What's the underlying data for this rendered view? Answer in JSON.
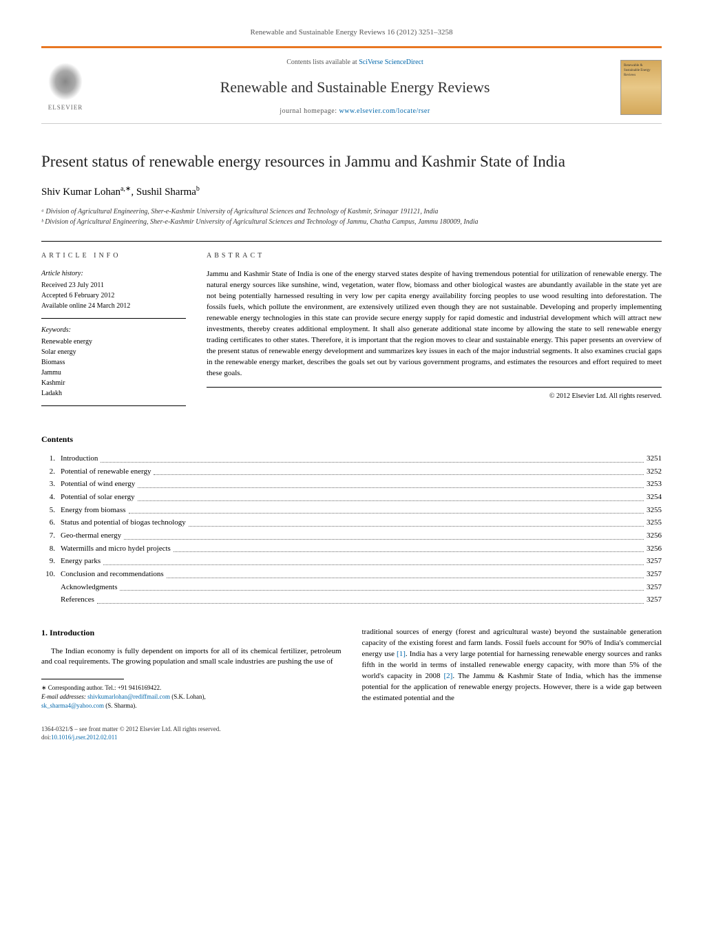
{
  "header": {
    "citation": "Renewable and Sustainable Energy Reviews 16 (2012) 3251–3258",
    "publisher": "ELSEVIER",
    "contents_prefix": "Contents lists available at ",
    "contents_link": "SciVerse ScienceDirect",
    "journal_title": "Renewable and Sustainable Energy Reviews",
    "homepage_prefix": "journal homepage: ",
    "homepage_url": "www.elsevier.com/locate/rser",
    "cover_text": "Renewable & Sustainable Energy Reviews"
  },
  "article": {
    "title": "Present status of renewable energy resources in Jammu and Kashmir State of India",
    "authors_html": "Shiv Kumar Lohan",
    "author1": "Shiv Kumar Lohan",
    "author1_sup": "a,∗",
    "author2": "Sushil Sharma",
    "author2_sup": "b",
    "affiliations": [
      "ᵃ Division of Agricultural Engineering, Sher-e-Kashmir University of Agricultural Sciences and Technology of Kashmir, Srinagar 191121, India",
      "ᵇ Division of Agricultural Engineering, Sher-e-Kashmir University of Agricultural Sciences and Technology of Jammu, Chatha Campus, Jammu 180009, India"
    ]
  },
  "info": {
    "heading": "article info",
    "history_head": "Article history:",
    "history": [
      "Received 23 July 2011",
      "Accepted 6 February 2012",
      "Available online 24 March 2012"
    ],
    "keywords_head": "Keywords:",
    "keywords": [
      "Renewable energy",
      "Solar energy",
      "Biomass",
      "Jammu",
      "Kashmir",
      "Ladakh"
    ]
  },
  "abstract": {
    "heading": "abstract",
    "text": "Jammu and Kashmir State of India is one of the energy starved states despite of having tremendous potential for utilization of renewable energy. The natural energy sources like sunshine, wind, vegetation, water flow, biomass and other biological wastes are abundantly available in the state yet are not being potentially harnessed resulting in very low per capita energy availability forcing peoples to use wood resulting into deforestation. The fossils fuels, which pollute the environment, are extensively utilized even though they are not sustainable. Developing and properly implementing renewable energy technologies in this state can provide secure energy supply for rapid domestic and industrial development which will attract new investments, thereby creates additional employment. It shall also generate additional state income by allowing the state to sell renewable energy trading certificates to other states. Therefore, it is important that the region moves to clear and sustainable energy. This paper presents an overview of the present status of renewable energy development and summarizes key issues in each of the major industrial segments. It also examines crucial gaps in the renewable energy market, describes the goals set out by various government programs, and estimates the resources and effort required to meet these goals.",
    "copyright": "© 2012 Elsevier Ltd. All rights reserved."
  },
  "contents": {
    "heading": "Contents",
    "items": [
      {
        "num": "1.",
        "title": "Introduction",
        "page": "3251"
      },
      {
        "num": "2.",
        "title": "Potential of renewable energy",
        "page": "3252"
      },
      {
        "num": "3.",
        "title": "Potential of wind energy",
        "page": "3253"
      },
      {
        "num": "4.",
        "title": "Potential of solar energy",
        "page": "3254"
      },
      {
        "num": "5.",
        "title": "Energy from biomass",
        "page": "3255"
      },
      {
        "num": "6.",
        "title": "Status and potential of biogas technology",
        "page": "3255"
      },
      {
        "num": "7.",
        "title": "Geo-thermal energy",
        "page": "3256"
      },
      {
        "num": "8.",
        "title": "Watermills and micro hydel projects",
        "page": "3256"
      },
      {
        "num": "9.",
        "title": "Energy parks",
        "page": "3257"
      },
      {
        "num": "10.",
        "title": "Conclusion and recommendations",
        "page": "3257"
      },
      {
        "num": "",
        "title": "Acknowledgments",
        "page": "3257"
      },
      {
        "num": "",
        "title": "References",
        "page": "3257"
      }
    ]
  },
  "body": {
    "section_num": "1.",
    "section_title": "Introduction",
    "left_para": "The Indian economy is fully dependent on imports for all of its chemical fertilizer, petroleum and coal requirements. The growing population and small scale industries are pushing the use of",
    "right_para1": "traditional sources of energy (forest and agricultural waste) beyond the sustainable generation capacity of the existing forest and farm lands. Fossil fuels account for 90% of India's commercial energy use ",
    "ref1": "[1]",
    "right_para2": ". India has a very large potential for harnessing renewable energy sources and ranks fifth in the world in terms of installed renewable energy capacity, with more than 5% of the world's capacity in 2008 ",
    "ref2": "[2]",
    "right_para3": ". The Jammu & Kashmir State of India, which has the immense potential for the application of renewable energy projects. However, there is a wide gap between the estimated potential and the"
  },
  "footnotes": {
    "corresponding": "∗ Corresponding author. Tel.: +91 9416169422.",
    "email_label": "E-mail addresses: ",
    "email1": "shivkumarlohan@rediffmail.com",
    "email1_name": " (S.K. Lohan),",
    "email2": "sk_sharma4@yahoo.com",
    "email2_name": " (S. Sharma)."
  },
  "bottom": {
    "issn": "1364-0321/$ – see front matter © 2012 Elsevier Ltd. All rights reserved.",
    "doi_label": "doi:",
    "doi": "10.1016/j.rser.2012.02.011"
  },
  "colors": {
    "accent": "#e87722",
    "link": "#0066aa",
    "text": "#000000",
    "muted": "#555555"
  }
}
